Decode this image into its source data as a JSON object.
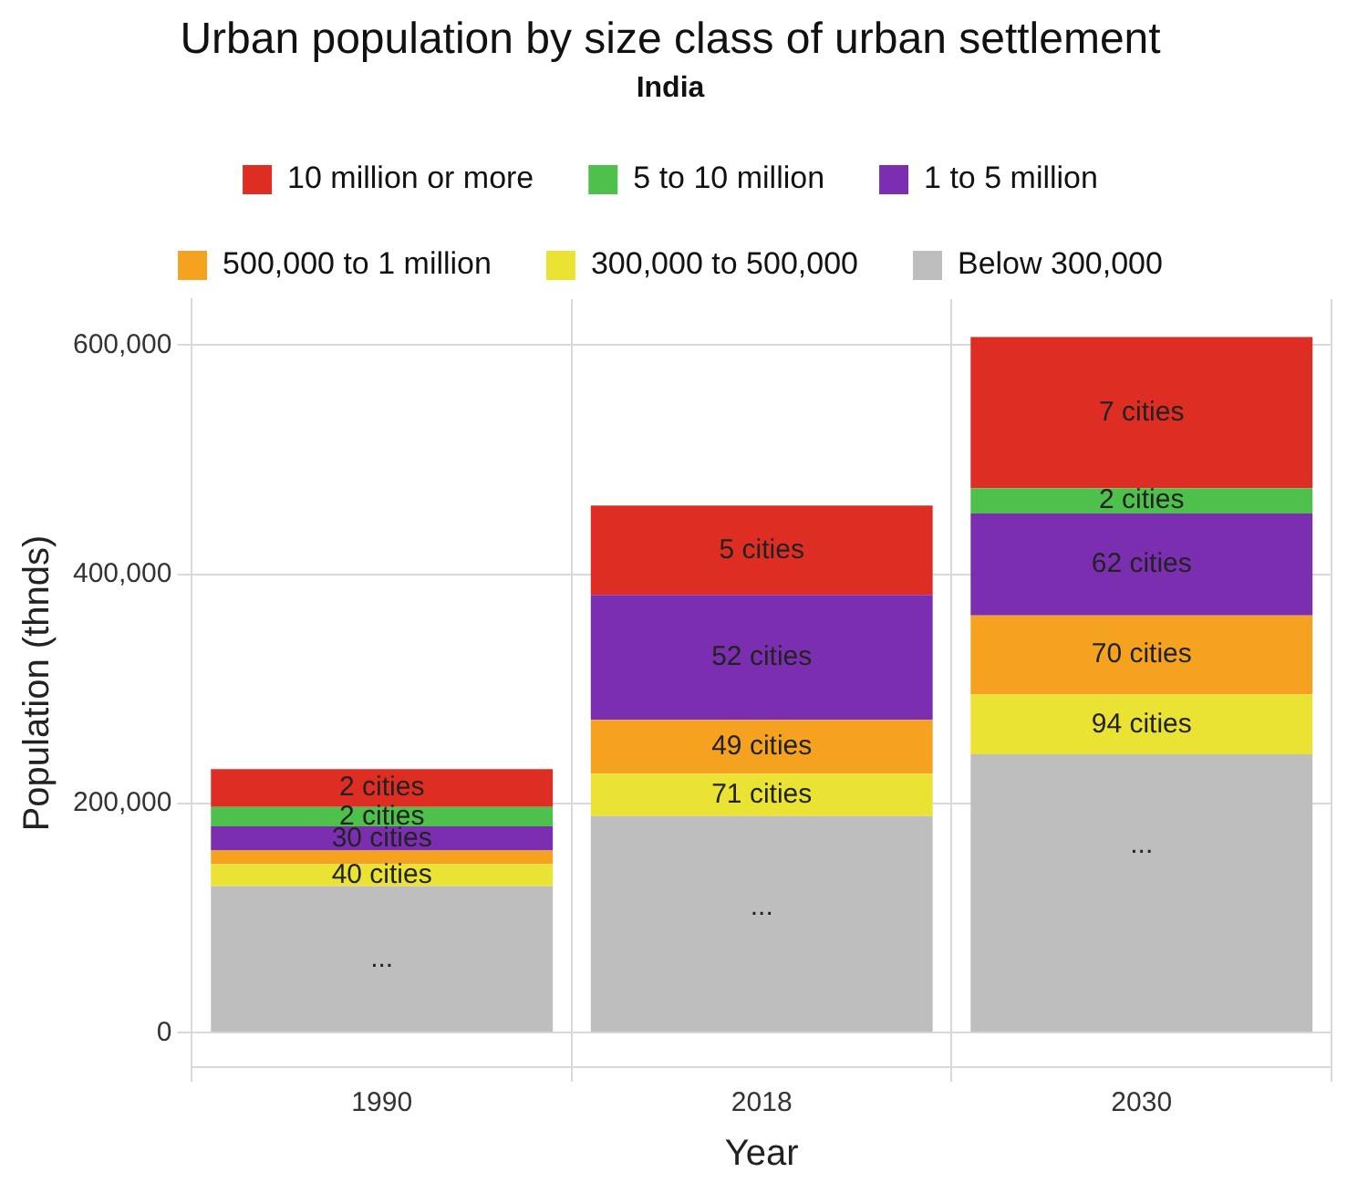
{
  "chart_data": {
    "type": "bar",
    "stacked": true,
    "title": "Urban population by size class of urban settlement",
    "subtitle": "India",
    "xlabel": "Year",
    "ylabel": "Population (thnds)",
    "categories": [
      "1990",
      "2018",
      "2030"
    ],
    "series": [
      {
        "name": "Below 300,000",
        "color": "#bebebe",
        "values": [
          128000,
          189000,
          243000
        ]
      },
      {
        "name": "300,000 to 500,000",
        "color": "#ebe333",
        "values": [
          19000,
          37000,
          52000
        ]
      },
      {
        "name": "500,000 to 1 million",
        "color": "#f4a21f",
        "values": [
          12000,
          47000,
          69000
        ]
      },
      {
        "name": "1 to 5 million",
        "color": "#7b2fb0",
        "values": [
          21000,
          109000,
          89000
        ]
      },
      {
        "name": "5 to 10 million",
        "color": "#4ec04c",
        "values": [
          17000,
          null,
          22000
        ]
      },
      {
        "name": "10 million or more",
        "color": "#de2e23",
        "values": [
          33000,
          78000,
          132000
        ]
      }
    ],
    "annotations": [
      {
        "text": "...",
        "x": "1990",
        "y": 128000
      },
      {
        "text": "40 cities",
        "x": "1990",
        "y": 147000
      },
      {
        "text": "30 cities",
        "x": "1990",
        "y": 180000
      },
      {
        "text": "2 cities",
        "x": "1990",
        "y": 197000
      },
      {
        "text": "2 cities",
        "x": "1990",
        "y": 230000
      },
      {
        "text": "...",
        "x": "2018",
        "y": 189000
      },
      {
        "text": "71 cities",
        "x": "2018",
        "y": 226000
      },
      {
        "text": "49 cities",
        "x": "2018",
        "y": 273000
      },
      {
        "text": "52 cities",
        "x": "2018",
        "y": 382000
      },
      {
        "text": "5 cities",
        "x": "2018",
        "y": 460000
      },
      {
        "text": "...",
        "x": "2030",
        "y": 243000
      },
      {
        "text": "94 cities",
        "x": "2030",
        "y": 295000
      },
      {
        "text": "70 cities",
        "x": "2030",
        "y": 364000
      },
      {
        "text": "62 cities",
        "x": "2030",
        "y": 453000
      },
      {
        "text": "2 cities",
        "x": "2030",
        "y": 475000
      },
      {
        "text": "7 cities",
        "x": "2030",
        "y": 607000
      }
    ],
    "ylim": [
      -30000,
      640000
    ],
    "yticks": [
      {
        "value": 0,
        "label": "0"
      },
      {
        "value": 200000,
        "label": "200,000"
      },
      {
        "value": 400000,
        "label": "400,000"
      },
      {
        "value": 600000,
        "label": "600,000"
      }
    ],
    "grid": true,
    "legend": "top"
  }
}
